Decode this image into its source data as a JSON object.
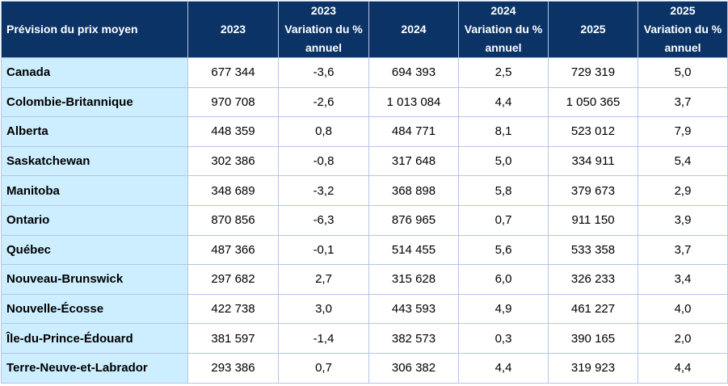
{
  "header": {
    "first_column": "Prévision du prix moyen",
    "columns": [
      {
        "lines": [
          "2023"
        ]
      },
      {
        "lines": [
          "2023",
          "Variation du %",
          "annuel"
        ]
      },
      {
        "lines": [
          "2024"
        ]
      },
      {
        "lines": [
          "2024",
          "Variation du %",
          "annuel"
        ]
      },
      {
        "lines": [
          "2025"
        ]
      },
      {
        "lines": [
          "2025",
          "Variation du %",
          "annuel"
        ]
      }
    ]
  },
  "rows": [
    {
      "region": "Canada",
      "values": [
        "677 344",
        "-3,6",
        "694 393",
        "2,5",
        "729 319",
        "5,0"
      ]
    },
    {
      "region": "Colombie-Britannique",
      "values": [
        "970 708",
        "-2,6",
        "1 013 084",
        "4,4",
        "1 050 365",
        "3,7"
      ]
    },
    {
      "region": "Alberta",
      "values": [
        "448 359",
        "0,8",
        "484 771",
        "8,1",
        "523 012",
        "7,9"
      ]
    },
    {
      "region": "Saskatchewan",
      "values": [
        "302 386",
        "-0,8",
        "317 648",
        "5,0",
        "334 911",
        "5,4"
      ]
    },
    {
      "region": "Manitoba",
      "values": [
        "348 689",
        "-3,2",
        "368 898",
        "5,8",
        "379 673",
        "2,9"
      ]
    },
    {
      "region": "Ontario",
      "values": [
        "870 856",
        "-6,3",
        "876 965",
        "0,7",
        "911 150",
        "3,9"
      ]
    },
    {
      "region": "Québec",
      "values": [
        "487 366",
        "-0,1",
        "514 455",
        "5,6",
        "533 358",
        "3,7"
      ]
    },
    {
      "region": "Nouveau-Brunswick",
      "values": [
        "297 682",
        "2,7",
        "315 628",
        "6,0",
        "326 233",
        "3,4"
      ]
    },
    {
      "region": "Nouvelle-Écosse",
      "values": [
        "422 738",
        "3,0",
        "443 593",
        "4,9",
        "461 227",
        "4,0"
      ]
    },
    {
      "region": "Île-du-Prince-Édouard",
      "values": [
        "381 597",
        "-1,4",
        "382 573",
        "0,3",
        "390 165",
        "2,0"
      ]
    },
    {
      "region": "Terre-Neuve-et-Labrador",
      "values": [
        "293 386",
        "0,7",
        "306 382",
        "4,4",
        "319 923",
        "4,4"
      ]
    }
  ],
  "colors": {
    "header_background": "#0b3366",
    "header_text": "#ffffff",
    "region_background": "#cdeeff",
    "grid_border": "#b4c6e7"
  }
}
